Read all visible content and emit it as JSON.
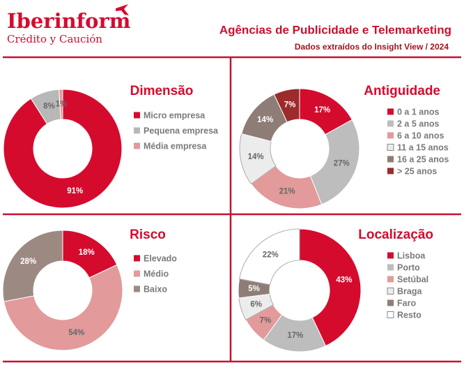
{
  "header": {
    "brand": "Iberinform",
    "tagline": "Crédito y Caución",
    "title": "Agências de Publicidade e Telemarketing",
    "subtitle": "Dados extraídos do Insight View / 2024"
  },
  "chart_data": [
    {
      "type": "donut",
      "title": "Dimensão",
      "categories": [
        "Micro empresa",
        "Pequena empresa",
        "Média empresa"
      ],
      "values": [
        91,
        8,
        1
      ],
      "value_labels": [
        "91%",
        "8%",
        "1%"
      ],
      "colors": [
        "#d50b2e",
        "#b8b8b8",
        "#e29a9a"
      ]
    },
    {
      "type": "donut",
      "title": "Antiguidade",
      "categories": [
        "0 a 1 anos",
        "2 a 5 anos",
        "6 a 10 anos",
        "11 a 15 anos",
        "16 a 25 anos",
        "> 25 anos"
      ],
      "values": [
        17,
        27,
        21,
        14,
        14,
        7
      ],
      "value_labels": [
        "17%",
        "27%",
        "21%",
        "14%",
        "14%",
        "7%"
      ],
      "colors": [
        "#d50b2e",
        "#bdbdbd",
        "#e29a9a",
        "#ececec",
        "#8e7d76",
        "#9c2b2b"
      ]
    },
    {
      "type": "donut",
      "title": "Risco",
      "categories": [
        "Elevado",
        "Médio",
        "Baixo"
      ],
      "values": [
        18,
        54,
        28
      ],
      "value_labels": [
        "18%",
        "54%",
        "28%"
      ],
      "colors": [
        "#d50b2e",
        "#e29a9a",
        "#9c8a82"
      ]
    },
    {
      "type": "donut",
      "title": "Localização",
      "categories": [
        "Lisboa",
        "Porto",
        "Setúbal",
        "Braga",
        "Faro",
        "Resto"
      ],
      "values": [
        43,
        17,
        7,
        6,
        5,
        22
      ],
      "value_labels": [
        "43%",
        "17%",
        "7%",
        "6%",
        "5%",
        "22%"
      ],
      "colors": [
        "#d50b2e",
        "#bdbdbd",
        "#e29a9a",
        "#ececec",
        "#8e7d76",
        "#ffffff"
      ]
    }
  ]
}
